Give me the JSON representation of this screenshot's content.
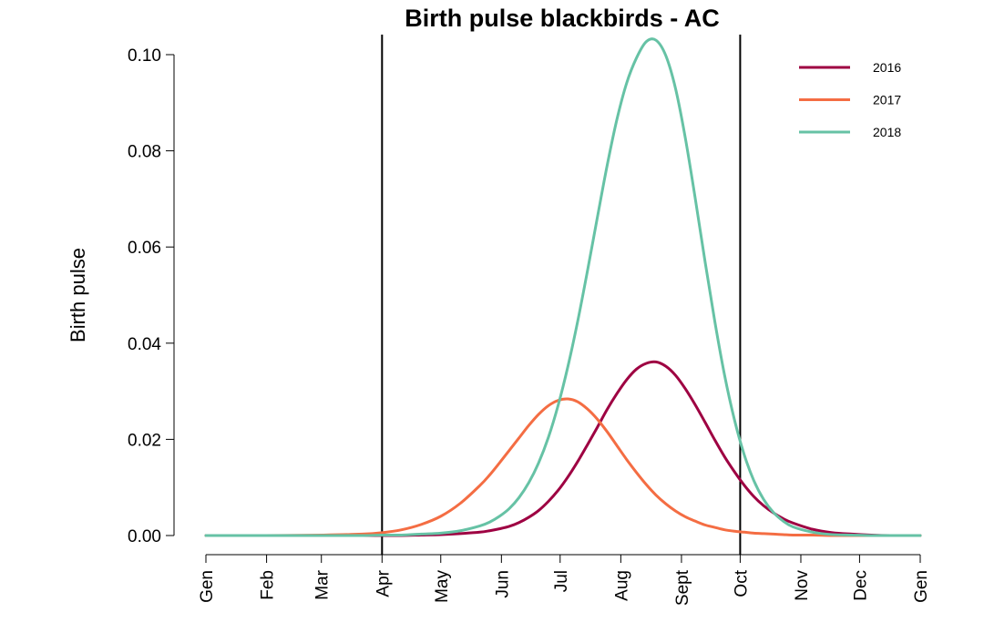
{
  "chart_data": {
    "type": "line",
    "title": "Birth pulse blackbirds - AC",
    "xlabel": "",
    "ylabel": "Birth pulse",
    "x_tick_labels": [
      "Gen",
      "Feb",
      "Mar",
      "Apr",
      "May",
      "Jun",
      "Jul",
      "Aug",
      "Sept",
      "Oct",
      "Nov",
      "Dec",
      "Gen"
    ],
    "x_tick_positions": [
      0,
      31,
      59,
      90,
      120,
      151,
      181,
      212,
      243,
      273,
      304,
      334,
      365
    ],
    "xlim": [
      0,
      365
    ],
    "ylim": [
      0,
      0.1
    ],
    "y_ticks": [
      0.0,
      0.02,
      0.04,
      0.06,
      0.08,
      0.1
    ],
    "y_tick_labels": [
      "0.00",
      "0.02",
      "0.04",
      "0.06",
      "0.08",
      "0.10"
    ],
    "vertical_lines_x": [
      90,
      273
    ],
    "grid": false,
    "legend_position": "top-right",
    "x": [
      0,
      30,
      60,
      80,
      90,
      100,
      110,
      120,
      130,
      140,
      145,
      150,
      155,
      160,
      165,
      170,
      175,
      180,
      185,
      190,
      195,
      200,
      205,
      210,
      215,
      220,
      225,
      230,
      235,
      240,
      245,
      250,
      255,
      260,
      265,
      270,
      275,
      280,
      285,
      290,
      295,
      300,
      310,
      320,
      330,
      340,
      350,
      365
    ],
    "series": [
      {
        "name": "2016",
        "color": "#9e0142",
        "values": [
          0.0,
          0.0,
          0.0,
          0.0,
          0.0,
          0.0,
          0.0001,
          0.0002,
          0.0004,
          0.0007,
          0.001,
          0.0014,
          0.0019,
          0.0027,
          0.0038,
          0.0052,
          0.0071,
          0.0094,
          0.0122,
          0.0154,
          0.0189,
          0.0225,
          0.0262,
          0.0295,
          0.0324,
          0.0346,
          0.0358,
          0.0361,
          0.0352,
          0.0333,
          0.0305,
          0.0272,
          0.0236,
          0.0199,
          0.0164,
          0.0133,
          0.0105,
          0.0081,
          0.0062,
          0.0047,
          0.0035,
          0.0026,
          0.0013,
          0.0006,
          0.0003,
          0.0001,
          0.0,
          0.0
        ]
      },
      {
        "name": "2017",
        "color": "#f46d43",
        "values": [
          0.0,
          0.0,
          0.0001,
          0.0003,
          0.0006,
          0.0012,
          0.0023,
          0.004,
          0.0067,
          0.0104,
          0.0126,
          0.0151,
          0.0177,
          0.0203,
          0.0229,
          0.0252,
          0.027,
          0.0281,
          0.0284,
          0.0278,
          0.0263,
          0.0242,
          0.0216,
          0.0187,
          0.0158,
          0.0131,
          0.0106,
          0.0084,
          0.0066,
          0.0051,
          0.0039,
          0.003,
          0.0022,
          0.0017,
          0.0012,
          0.0009,
          0.0007,
          0.0005,
          0.0004,
          0.0003,
          0.0002,
          0.0001,
          0.0001,
          0.0,
          0.0,
          0.0,
          0.0,
          0.0
        ]
      },
      {
        "name": "2018",
        "color": "#66c2a5",
        "values": [
          0.0,
          0.0,
          0.0,
          0.0,
          0.0001,
          0.0001,
          0.0003,
          0.0005,
          0.001,
          0.002,
          0.0028,
          0.004,
          0.0056,
          0.0079,
          0.011,
          0.0151,
          0.0204,
          0.0271,
          0.0352,
          0.0446,
          0.0551,
          0.0661,
          0.0769,
          0.0865,
          0.0941,
          0.0993,
          0.1027,
          0.103,
          0.0998,
          0.0929,
          0.0826,
          0.0702,
          0.0571,
          0.0446,
          0.0334,
          0.0242,
          0.0169,
          0.0114,
          0.0075,
          0.0048,
          0.003,
          0.0018,
          0.0007,
          0.0002,
          0.0001,
          0.0,
          0.0,
          0.0
        ]
      }
    ]
  }
}
